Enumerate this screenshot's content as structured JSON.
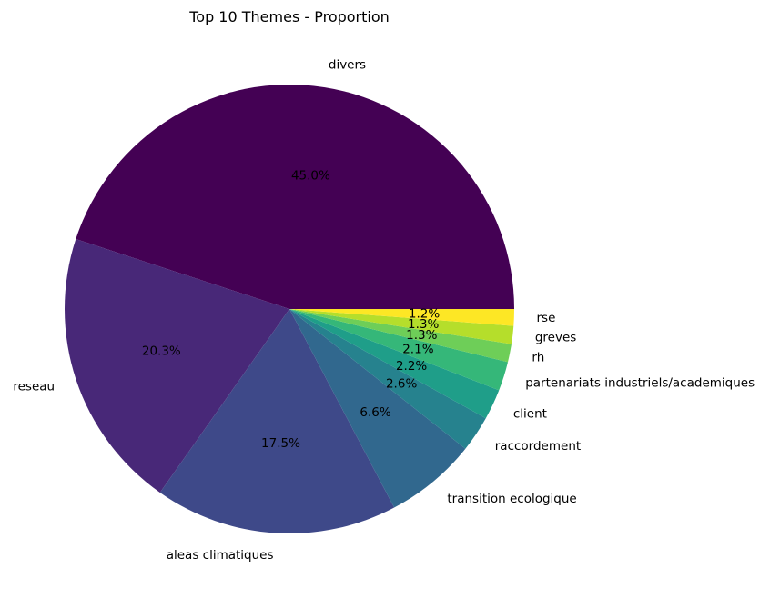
{
  "chart_data": {
    "type": "pie",
    "title": "Top 10 Themes - Proportion",
    "start_angle_deg": 0,
    "direction": "counterclockwise",
    "legend": "none",
    "slices": [
      {
        "label": "divers",
        "value": 45.0,
        "pct_label": "45.0%",
        "color": "#440154"
      },
      {
        "label": "reseau",
        "value": 20.3,
        "pct_label": "20.3%",
        "color": "#482878"
      },
      {
        "label": "aleas climatiques",
        "value": 17.5,
        "pct_label": "17.5%",
        "color": "#3e4989"
      },
      {
        "label": "transition ecologique",
        "value": 6.6,
        "pct_label": "6.6%",
        "color": "#31688e"
      },
      {
        "label": "raccordement",
        "value": 2.6,
        "pct_label": "2.6%",
        "color": "#26828e"
      },
      {
        "label": "client",
        "value": 2.2,
        "pct_label": "2.2%",
        "color": "#1f9e89"
      },
      {
        "label": "partenariats industriels/academiques",
        "value": 2.1,
        "pct_label": "2.1%",
        "color": "#35b779"
      },
      {
        "label": "rh",
        "value": 1.3,
        "pct_label": "1.3%",
        "color": "#6ece58"
      },
      {
        "label": "greves",
        "value": 1.3,
        "pct_label": "1.3%",
        "color": "#b5de2b"
      },
      {
        "label": "rse",
        "value": 1.2,
        "pct_label": "1.2%",
        "color": "#fde725"
      }
    ]
  }
}
